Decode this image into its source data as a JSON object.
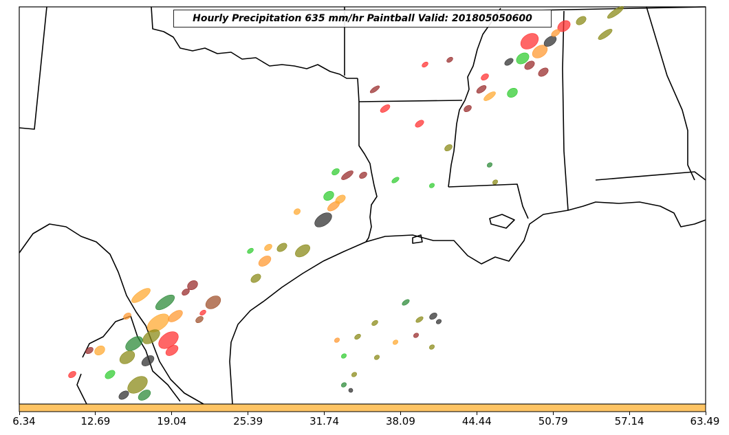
{
  "title": "Hourly Precipitation 635 mm/hr Paintball Valid: 201805050600",
  "colorbar": {
    "color": "#fec464",
    "ticks": [
      "6.34",
      "12.69",
      "19.04",
      "25.39",
      "31.74",
      "38.09",
      "44.44",
      "50.79",
      "57.14",
      "63.49"
    ]
  },
  "paintball_colors": [
    "#ff3333",
    "#9a2e2e",
    "#ff9933",
    "#ffaa33",
    "#33cc33",
    "#2e8b3a",
    "#8b8b1a",
    "#333333",
    "#a0522d"
  ]
}
